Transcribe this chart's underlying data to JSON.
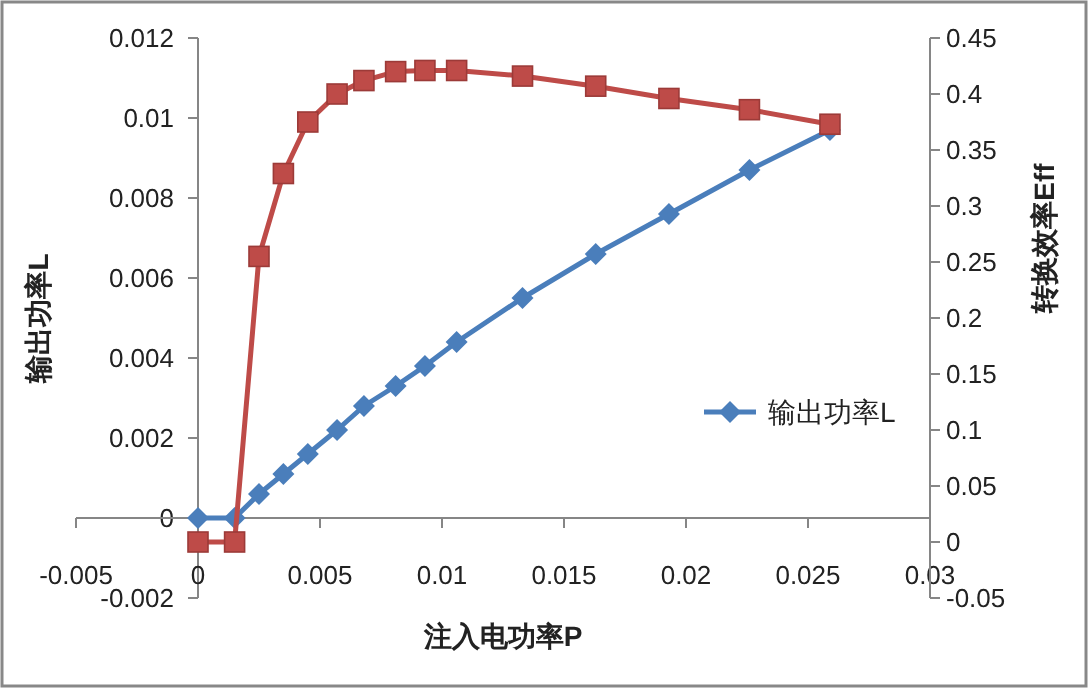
{
  "chart_data": {
    "type": "line",
    "xlabel": "注入电功率P",
    "ylabel": "输出功率L",
    "y2label": "转换效率Eff",
    "xlim": [
      -0.005,
      0.03
    ],
    "xticks": [
      -0.005,
      0,
      0.005,
      0.01,
      0.015,
      0.02,
      0.025,
      0.03
    ],
    "ylim": [
      -0.002,
      0.012
    ],
    "yticks": [
      -0.002,
      0,
      0.002,
      0.004,
      0.006,
      0.008,
      0.01,
      0.012
    ],
    "y2lim": [
      -0.05,
      0.45
    ],
    "y2ticks": [
      -0.05,
      0,
      0.05,
      0.1,
      0.15,
      0.2,
      0.25,
      0.3,
      0.35,
      0.4,
      0.45
    ],
    "grid": false,
    "legend": "right",
    "line_style": "solid",
    "series": [
      {
        "name": "输出功率L",
        "color": "#4a7ebb",
        "marker": "diamond",
        "x": [
          0,
          0.0015,
          0.0025,
          0.0035,
          0.0045,
          0.0057,
          0.0068,
          0.0081,
          0.0093,
          0.0106,
          0.0133,
          0.0163,
          0.0193,
          0.0226,
          0.0259
        ],
        "values": [
          0,
          0,
          0.0006,
          0.0011,
          0.0016,
          0.0022,
          0.0028,
          0.0033,
          0.0038,
          0.0044,
          0.0055,
          0.0066,
          0.0076,
          0.0087,
          0.0097
        ]
      },
      {
        "color": "#be4b48",
        "marker": "square",
        "axis": "y2",
        "x": [
          0,
          0.0015,
          0.0025,
          0.0035,
          0.0045,
          0.0057,
          0.0068,
          0.0081,
          0.0093,
          0.0106,
          0.0133,
          0.0163,
          0.0193,
          0.0226,
          0.0259
        ],
        "values": [
          0,
          0,
          0.255,
          0.329,
          0.375,
          0.4,
          0.412,
          0.42,
          0.421,
          0.421,
          0.416,
          0.407,
          0.396,
          0.386,
          0.373
        ]
      }
    ]
  }
}
